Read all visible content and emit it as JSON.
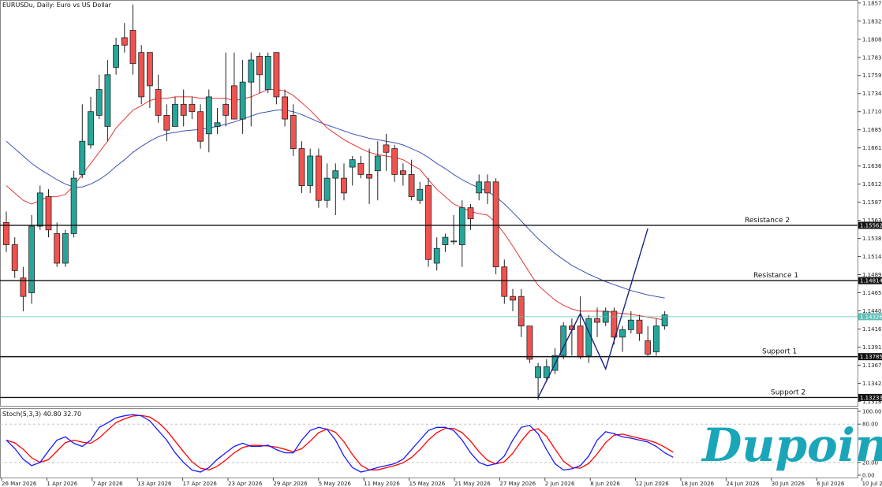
{
  "chart_data": {
    "type": "candlestick",
    "title": "EURUSDu, Daily: Euro vs US Dollar",
    "y_ticks": [
      "1.18570",
      "1.18325",
      "1.18080",
      "1.17835",
      "1.17590",
      "1.17345",
      "1.17100",
      "1.16855",
      "1.16610",
      "1.16365",
      "1.16120",
      "1.15875",
      "1.15630",
      "1.15385",
      "1.15140",
      "1.14895",
      "1.14650",
      "1.14405",
      "1.14160",
      "1.13915",
      "1.13670",
      "1.13425",
      "1.13180"
    ],
    "ylim": [
      1.1312,
      1.186
    ],
    "x_labels": [
      "26 Mar 2026",
      "1 Apr 2026",
      "7 Apr 2026",
      "13 Apr 2026",
      "17 Apr 2026",
      "23 Apr 2026",
      "29 Apr 2026",
      "5 May 2026",
      "11 May 2026",
      "15 May 2026",
      "21 May 2026",
      "27 May 2026",
      "2 Jun 2026",
      "8 Jun 2026",
      "12 Jun 2026",
      "18 Jun 2026",
      "24 Jun 2026",
      "30 Jun 2026",
      "6 Jul 2026",
      "10 Jul 2026"
    ],
    "candles": [
      {
        "o": 1.156,
        "h": 1.1575,
        "l": 1.152,
        "c": 1.153
      },
      {
        "o": 1.153,
        "h": 1.154,
        "l": 1.1485,
        "c": 1.1495
      },
      {
        "o": 1.1485,
        "h": 1.15,
        "l": 1.144,
        "c": 1.146
      },
      {
        "o": 1.1465,
        "h": 1.157,
        "l": 1.145,
        "c": 1.1555
      },
      {
        "o": 1.1555,
        "h": 1.161,
        "l": 1.155,
        "c": 1.16
      },
      {
        "o": 1.1595,
        "h": 1.1605,
        "l": 1.154,
        "c": 1.155
      },
      {
        "o": 1.1545,
        "h": 1.156,
        "l": 1.15,
        "c": 1.1505
      },
      {
        "o": 1.1505,
        "h": 1.155,
        "l": 1.15,
        "c": 1.1545
      },
      {
        "o": 1.1545,
        "h": 1.163,
        "l": 1.154,
        "c": 1.162
      },
      {
        "o": 1.1625,
        "h": 1.172,
        "l": 1.162,
        "c": 1.167
      },
      {
        "o": 1.1665,
        "h": 1.173,
        "l": 1.166,
        "c": 1.171
      },
      {
        "o": 1.1705,
        "h": 1.176,
        "l": 1.17,
        "c": 1.174
      },
      {
        "o": 1.169,
        "h": 1.178,
        "l": 1.167,
        "c": 1.176
      },
      {
        "o": 1.177,
        "h": 1.181,
        "l": 1.176,
        "c": 1.18
      },
      {
        "o": 1.181,
        "h": 1.183,
        "l": 1.179,
        "c": 1.18
      },
      {
        "o": 1.182,
        "h": 1.1855,
        "l": 1.176,
        "c": 1.1775
      },
      {
        "o": 1.179,
        "h": 1.18,
        "l": 1.172,
        "c": 1.173
      },
      {
        "o": 1.179,
        "h": 1.179,
        "l": 1.1715,
        "c": 1.1745
      },
      {
        "o": 1.174,
        "h": 1.176,
        "l": 1.1695,
        "c": 1.1705
      },
      {
        "o": 1.1705,
        "h": 1.172,
        "l": 1.167,
        "c": 1.1685
      },
      {
        "o": 1.169,
        "h": 1.173,
        "l": 1.169,
        "c": 1.172
      },
      {
        "o": 1.172,
        "h": 1.174,
        "l": 1.169,
        "c": 1.1705
      },
      {
        "o": 1.172,
        "h": 1.173,
        "l": 1.17,
        "c": 1.171
      },
      {
        "o": 1.171,
        "h": 1.172,
        "l": 1.166,
        "c": 1.167
      },
      {
        "o": 1.168,
        "h": 1.174,
        "l": 1.1655,
        "c": 1.173
      },
      {
        "o": 1.169,
        "h": 1.1715,
        "l": 1.168,
        "c": 1.1695
      },
      {
        "o": 1.172,
        "h": 1.179,
        "l": 1.169,
        "c": 1.1705
      },
      {
        "o": 1.1745,
        "h": 1.179,
        "l": 1.17,
        "c": 1.17
      },
      {
        "o": 1.17,
        "h": 1.178,
        "l": 1.168,
        "c": 1.175
      },
      {
        "o": 1.175,
        "h": 1.179,
        "l": 1.169,
        "c": 1.178
      },
      {
        "o": 1.1785,
        "h": 1.179,
        "l": 1.1735,
        "c": 1.176
      },
      {
        "o": 1.174,
        "h": 1.179,
        "l": 1.1735,
        "c": 1.1785
      },
      {
        "o": 1.179,
        "h": 1.179,
        "l": 1.172,
        "c": 1.173
      },
      {
        "o": 1.173,
        "h": 1.174,
        "l": 1.169,
        "c": 1.17
      },
      {
        "o": 1.1705,
        "h": 1.172,
        "l": 1.165,
        "c": 1.166
      },
      {
        "o": 1.166,
        "h": 1.167,
        "l": 1.16,
        "c": 1.161
      },
      {
        "o": 1.161,
        "h": 1.166,
        "l": 1.16,
        "c": 1.165
      },
      {
        "o": 1.165,
        "h": 1.166,
        "l": 1.158,
        "c": 1.159
      },
      {
        "o": 1.159,
        "h": 1.164,
        "l": 1.158,
        "c": 1.162
      },
      {
        "o": 1.162,
        "h": 1.164,
        "l": 1.157,
        "c": 1.163
      },
      {
        "o": 1.162,
        "h": 1.164,
        "l": 1.159,
        "c": 1.16
      },
      {
        "o": 1.1635,
        "h": 1.165,
        "l": 1.161,
        "c": 1.1645
      },
      {
        "o": 1.164,
        "h": 1.165,
        "l": 1.162,
        "c": 1.1625
      },
      {
        "o": 1.1625,
        "h": 1.166,
        "l": 1.1585,
        "c": 1.162
      },
      {
        "o": 1.163,
        "h": 1.167,
        "l": 1.159,
        "c": 1.165
      },
      {
        "o": 1.1665,
        "h": 1.168,
        "l": 1.163,
        "c": 1.1655
      },
      {
        "o": 1.166,
        "h": 1.1665,
        "l": 1.1615,
        "c": 1.1625
      },
      {
        "o": 1.163,
        "h": 1.164,
        "l": 1.161,
        "c": 1.1625
      },
      {
        "o": 1.1625,
        "h": 1.1645,
        "l": 1.159,
        "c": 1.1595
      },
      {
        "o": 1.159,
        "h": 1.1615,
        "l": 1.1585,
        "c": 1.1605
      },
      {
        "o": 1.161,
        "h": 1.162,
        "l": 1.15,
        "c": 1.151
      },
      {
        "o": 1.1505,
        "h": 1.154,
        "l": 1.1495,
        "c": 1.1525
      },
      {
        "o": 1.153,
        "h": 1.1545,
        "l": 1.152,
        "c": 1.154
      },
      {
        "o": 1.1535,
        "h": 1.157,
        "l": 1.153,
        "c": 1.1535
      },
      {
        "o": 1.153,
        "h": 1.159,
        "l": 1.15,
        "c": 1.158
      },
      {
        "o": 1.158,
        "h": 1.1585,
        "l": 1.155,
        "c": 1.1565
      },
      {
        "o": 1.16,
        "h": 1.1625,
        "l": 1.159,
        "c": 1.1615
      },
      {
        "o": 1.1615,
        "h": 1.1625,
        "l": 1.1585,
        "c": 1.16
      },
      {
        "o": 1.1615,
        "h": 1.162,
        "l": 1.149,
        "c": 1.15
      },
      {
        "o": 1.15,
        "h": 1.151,
        "l": 1.145,
        "c": 1.146
      },
      {
        "o": 1.146,
        "h": 1.147,
        "l": 1.144,
        "c": 1.1455
      },
      {
        "o": 1.146,
        "h": 1.147,
        "l": 1.1405,
        "c": 1.142
      },
      {
        "o": 1.142,
        "h": 1.142,
        "l": 1.137,
        "c": 1.1375
      },
      {
        "o": 1.135,
        "h": 1.137,
        "l": 1.132,
        "c": 1.1365
      },
      {
        "o": 1.135,
        "h": 1.1375,
        "l": 1.1345,
        "c": 1.1365
      },
      {
        "o": 1.136,
        "h": 1.139,
        "l": 1.1355,
        "c": 1.138
      },
      {
        "o": 1.138,
        "h": 1.1425,
        "l": 1.1375,
        "c": 1.142
      },
      {
        "o": 1.142,
        "h": 1.143,
        "l": 1.138,
        "c": 1.1415
      },
      {
        "o": 1.142,
        "h": 1.146,
        "l": 1.1375,
        "c": 1.1378
      },
      {
        "o": 1.138,
        "h": 1.1435,
        "l": 1.137,
        "c": 1.143
      },
      {
        "o": 1.143,
        "h": 1.1445,
        "l": 1.1405,
        "c": 1.1425
      },
      {
        "o": 1.1425,
        "h": 1.1445,
        "l": 1.142,
        "c": 1.144
      },
      {
        "o": 1.144,
        "h": 1.1445,
        "l": 1.1395,
        "c": 1.1405
      },
      {
        "o": 1.1405,
        "h": 1.142,
        "l": 1.1385,
        "c": 1.1415
      },
      {
        "o": 1.1415,
        "h": 1.144,
        "l": 1.141,
        "c": 1.1428
      },
      {
        "o": 1.1428,
        "h": 1.1435,
        "l": 1.14,
        "c": 1.141
      },
      {
        "o": 1.14,
        "h": 1.142,
        "l": 1.1378,
        "c": 1.1382
      },
      {
        "o": 1.1385,
        "h": 1.143,
        "l": 1.138,
        "c": 1.142
      },
      {
        "o": 1.142,
        "h": 1.144,
        "l": 1.1415,
        "c": 1.1435
      }
    ],
    "ma_red": [
      1.161,
      1.16,
      1.159,
      1.1585,
      1.159,
      1.1595,
      1.1595,
      1.1598,
      1.161,
      1.1625,
      1.164,
      1.1655,
      1.167,
      1.1688,
      1.17,
      1.1712,
      1.1718,
      1.1725,
      1.1728,
      1.1728,
      1.173,
      1.173,
      1.173,
      1.1728,
      1.1728,
      1.1728,
      1.1728,
      1.1725,
      1.1727,
      1.173,
      1.1735,
      1.174,
      1.174,
      1.1738,
      1.1732,
      1.1722,
      1.1712,
      1.17,
      1.1688,
      1.168,
      1.1672,
      1.1666,
      1.166,
      1.1655,
      1.1652,
      1.165,
      1.1648,
      1.1645,
      1.1638,
      1.1632,
      1.1618,
      1.1605,
      1.1595,
      1.1585,
      1.158,
      1.1575,
      1.1572,
      1.157,
      1.156,
      1.1545,
      1.1528,
      1.151,
      1.1492,
      1.1475,
      1.1465,
      1.1455,
      1.1448,
      1.1443,
      1.144,
      1.144,
      1.144,
      1.144,
      1.1438,
      1.1437,
      1.1436,
      1.1434,
      1.1432,
      1.143,
      1.1428
    ],
    "ma_blue": [
      1.167,
      1.166,
      1.165,
      1.164,
      1.1632,
      1.1625,
      1.1618,
      1.1612,
      1.1608,
      1.1608,
      1.1612,
      1.1618,
      1.1626,
      1.1636,
      1.1645,
      1.1655,
      1.1663,
      1.167,
      1.1676,
      1.168,
      1.1682,
      1.1684,
      1.1685,
      1.1686,
      1.1688,
      1.169,
      1.1693,
      1.1696,
      1.17,
      1.1704,
      1.1708,
      1.171,
      1.1712,
      1.1712,
      1.171,
      1.1706,
      1.1701,
      1.1696,
      1.1692,
      1.1688,
      1.1684,
      1.168,
      1.1677,
      1.1674,
      1.1672,
      1.167,
      1.1668,
      1.1665,
      1.166,
      1.1655,
      1.1648,
      1.164,
      1.1633,
      1.1625,
      1.1618,
      1.1612,
      1.1607,
      1.1602,
      1.1595,
      1.1585,
      1.1574,
      1.1562,
      1.155,
      1.1538,
      1.1528,
      1.1518,
      1.151,
      1.1502,
      1.1496,
      1.149,
      1.1485,
      1.148,
      1.1476,
      1.1472,
      1.1468,
      1.1465,
      1.1462,
      1.146,
      1.1458
    ],
    "levels": [
      {
        "name": "Resistance 2",
        "value": 1.15562,
        "tag": "1.15562"
      },
      {
        "name": "Resistance 1",
        "value": 1.14814,
        "tag": "1.14814"
      },
      {
        "name": "Support 1",
        "value": 1.13785,
        "tag": "1.13785"
      },
      {
        "name": "Support 2",
        "value": 1.13233,
        "tag": "1.13233"
      }
    ],
    "current_price": {
      "value": 1.14326,
      "tag": "1.14326"
    },
    "pattern_line": [
      {
        "i": 63,
        "v": 1.13233
      },
      {
        "i": 68,
        "v": 1.1437
      },
      {
        "i": 71,
        "v": 1.1362
      },
      {
        "i": 76,
        "v": 1.1552
      }
    ],
    "stoch": {
      "title": "Stoch(5,3,3) 40.80 32.70",
      "ylim": [
        0,
        100
      ],
      "y_ticks": [
        "100.00",
        "80.00",
        "20.00",
        "0.00"
      ],
      "levels": [
        80,
        20
      ],
      "k": [
        55,
        42,
        25,
        15,
        20,
        38,
        55,
        60,
        50,
        45,
        55,
        75,
        82,
        90,
        93,
        95,
        93,
        85,
        70,
        55,
        35,
        20,
        8,
        5,
        12,
        25,
        35,
        45,
        50,
        45,
        45,
        47,
        40,
        35,
        35,
        55,
        70,
        75,
        72,
        55,
        30,
        12,
        5,
        8,
        12,
        15,
        18,
        25,
        40,
        55,
        70,
        75,
        75,
        70,
        55,
        35,
        20,
        15,
        18,
        30,
        55,
        75,
        78,
        65,
        40,
        18,
        8,
        10,
        15,
        30,
        55,
        68,
        65,
        60,
        58,
        55,
        52,
        45,
        35,
        28
      ]
    },
    "brand": "Dupoin",
    "colors": {
      "bull": "#26a69a",
      "bear": "#ef5350",
      "ma_red": "#e53935",
      "ma_blue": "#3f51b5",
      "stoch_k": "#1a1aff",
      "stoch_d": "#ff0000",
      "level": "#111111",
      "current": "#5fbfb7",
      "logo": "#1aa6b8"
    }
  }
}
